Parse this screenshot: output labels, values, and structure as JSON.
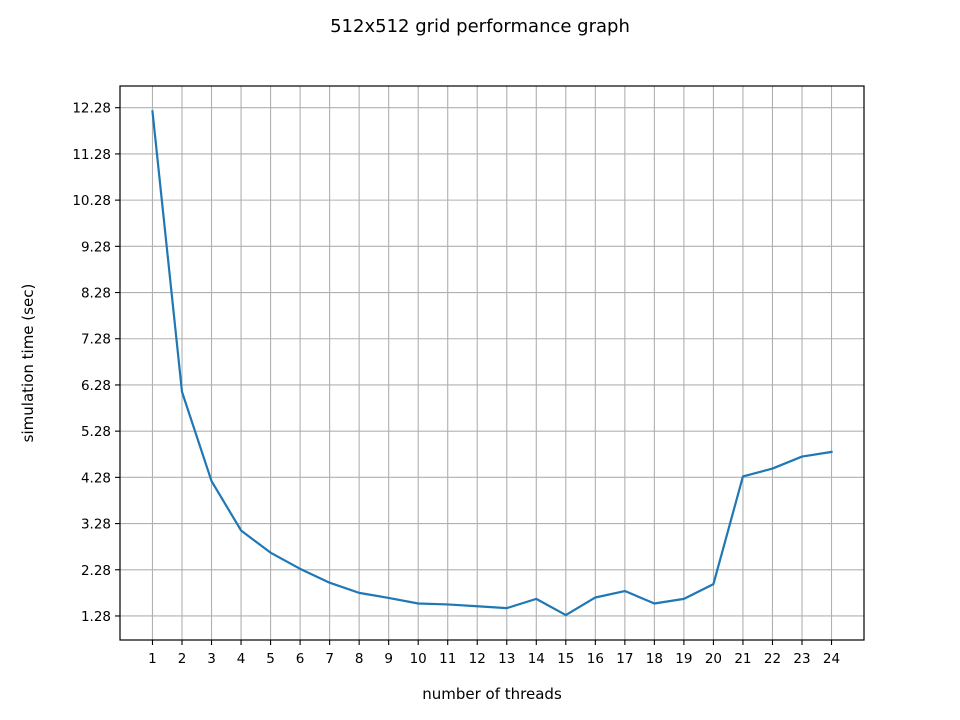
{
  "chart_data": {
    "type": "line",
    "title": "512x512 grid performance graph",
    "xlabel": "number of threads",
    "ylabel": "simulation time (sec)",
    "x": [
      1,
      2,
      3,
      4,
      5,
      6,
      7,
      8,
      9,
      10,
      11,
      12,
      13,
      14,
      15,
      16,
      17,
      18,
      19,
      20,
      21,
      22,
      23,
      24
    ],
    "x_tick_labels": [
      "1",
      "2",
      "3",
      "4",
      "5",
      "6",
      "7",
      "8",
      "9",
      "10",
      "11",
      "12",
      "13",
      "14",
      "15",
      "16",
      "17",
      "18",
      "19",
      "20",
      "21",
      "22",
      "23",
      "24"
    ],
    "y_ticks": [
      1.28,
      2.28,
      3.28,
      4.28,
      5.28,
      6.28,
      7.28,
      8.28,
      9.28,
      10.28,
      11.28,
      12.28
    ],
    "y_tick_labels": [
      "1.28",
      "2.28",
      "3.28",
      "4.28",
      "5.28",
      "6.28",
      "7.28",
      "8.28",
      "9.28",
      "10.28",
      "11.28",
      "12.28"
    ],
    "series": [
      {
        "values": [
          12.2,
          6.13,
          4.2,
          3.13,
          2.65,
          2.3,
          2.0,
          1.78,
          1.67,
          1.55,
          1.53,
          1.49,
          1.45,
          1.65,
          1.3,
          1.68,
          1.82,
          1.55,
          1.65,
          1.97,
          4.3,
          4.47,
          4.73,
          4.83
        ],
        "color": "#1f77b4"
      }
    ],
    "xlim": [
      -0.1,
      25.1
    ],
    "ylim": [
      0.76,
      12.75
    ],
    "grid": true
  }
}
